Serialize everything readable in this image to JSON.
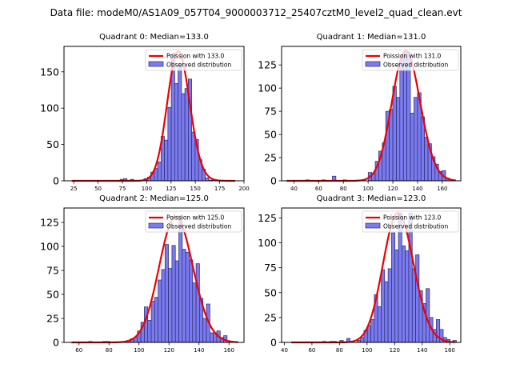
{
  "figure": {
    "suptitle": "Data file: modeM0/AS1A09_057T04_9000003712_25407cztM0_level2_quad_clean.evt",
    "colors": {
      "bar_fill": "#7b7bf0",
      "bar_edge": "#2b2b6b",
      "poisson_line": "#ee0000"
    }
  },
  "chart_data": [
    {
      "type": "bar",
      "title": "Quadrant 0: Median=133.0",
      "legend": {
        "entries": [
          "Poission with 133.0",
          "Observed distribution"
        ],
        "position": "top-right"
      },
      "xlim": [
        15,
        200
      ],
      "ylim": [
        0,
        185
      ],
      "xticks": [
        25,
        50,
        75,
        100,
        125,
        150,
        175,
        200
      ],
      "yticks": [
        0,
        50,
        100,
        150
      ],
      "poisson_mean": 133.0,
      "poisson_scale": 178,
      "bin_width": 3.5,
      "bins": [
        [
          74.5,
          2
        ],
        [
          78,
          3
        ],
        [
          85,
          2
        ],
        [
          99,
          3
        ],
        [
          102.5,
          5
        ],
        [
          106,
          12
        ],
        [
          109.5,
          17
        ],
        [
          113,
          26
        ],
        [
          116.5,
          61
        ],
        [
          120,
          56
        ],
        [
          123.5,
          101
        ],
        [
          127,
          175
        ],
        [
          130.5,
          134
        ],
        [
          134,
          162
        ],
        [
          137.5,
          120
        ],
        [
          141,
          127
        ],
        [
          144.5,
          140
        ],
        [
          148,
          67
        ],
        [
          151.5,
          57
        ],
        [
          155,
          29
        ],
        [
          158.5,
          16
        ],
        [
          162,
          4
        ],
        [
          165.5,
          1
        ],
        [
          169,
          1
        ]
      ],
      "bin_range": [
        23,
        191
      ]
    },
    {
      "type": "bar",
      "title": "Quadrant 1: Median=131.0",
      "legend": {
        "entries": [
          "Poission with 131.0",
          "Observed distribution"
        ],
        "position": "top-right"
      },
      "xlim": [
        30,
        175
      ],
      "ylim": [
        0,
        145
      ],
      "xticks": [
        40,
        60,
        80,
        100,
        120,
        140,
        160
      ],
      "yticks": [
        0,
        25,
        50,
        75,
        100,
        125
      ],
      "poisson_mean": 131.0,
      "poisson_scale": 140,
      "bin_width": 2.85,
      "bins": [
        [
          51,
          1
        ],
        [
          64,
          1
        ],
        [
          72.5,
          5
        ],
        [
          81,
          1
        ],
        [
          101.5,
          9
        ],
        [
          104.3,
          8
        ],
        [
          107.2,
          21
        ],
        [
          110,
          32
        ],
        [
          112.9,
          41
        ],
        [
          115.7,
          75
        ],
        [
          118.6,
          77
        ],
        [
          121.4,
          102
        ],
        [
          124.3,
          90
        ],
        [
          127.1,
          131
        ],
        [
          130,
          139
        ],
        [
          132.8,
          139
        ],
        [
          135.7,
          73
        ],
        [
          138.5,
          90
        ],
        [
          141.4,
          95
        ],
        [
          144.2,
          69
        ],
        [
          147.1,
          47
        ],
        [
          149.9,
          40
        ],
        [
          152.8,
          26
        ],
        [
          155.6,
          18
        ],
        [
          158.5,
          10
        ],
        [
          161.3,
          11
        ],
        [
          164.2,
          3
        ]
      ],
      "bin_range": [
        34,
        171
      ]
    },
    {
      "type": "bar",
      "title": "Quadrant 2: Median=125.0",
      "legend": {
        "entries": [
          "Poission with 125.0",
          "Observed distribution"
        ],
        "position": "top-right"
      },
      "xlim": [
        50,
        170
      ],
      "ylim": [
        0,
        140
      ],
      "xticks": [
        60,
        80,
        100,
        120,
        140,
        160
      ],
      "yticks": [
        0,
        25,
        50,
        75,
        100,
        125
      ],
      "poisson_mean": 125.0,
      "poisson_scale": 131,
      "bin_width": 2.3,
      "bins": [
        [
          67.5,
          1
        ],
        [
          77,
          1
        ],
        [
          79.3,
          1
        ],
        [
          93.2,
          2
        ],
        [
          95.5,
          4
        ],
        [
          97.8,
          5
        ],
        [
          100.1,
          12
        ],
        [
          102.4,
          21
        ],
        [
          104.7,
          37
        ],
        [
          107,
          23
        ],
        [
          109.3,
          43
        ],
        [
          111.6,
          47
        ],
        [
          113.9,
          65
        ],
        [
          116.2,
          76
        ],
        [
          118.5,
          102
        ],
        [
          120.8,
          77
        ],
        [
          123.1,
          101
        ],
        [
          125.4,
          85
        ],
        [
          127.7,
          132
        ],
        [
          130,
          97
        ],
        [
          132.3,
          94
        ],
        [
          134.6,
          86
        ],
        [
          136.9,
          62
        ],
        [
          139.2,
          82
        ],
        [
          141.5,
          46
        ],
        [
          143.8,
          25
        ],
        [
          146.1,
          40
        ],
        [
          148.4,
          10
        ],
        [
          150.7,
          10
        ],
        [
          153,
          12
        ],
        [
          155.3,
          5
        ],
        [
          157.6,
          7
        ]
      ],
      "bin_range": [
        55,
        166
      ]
    },
    {
      "type": "bar",
      "title": "Quadrant 3: Median=123.0",
      "legend": {
        "entries": [
          "Poission with 123.0",
          "Observed distribution"
        ],
        "position": "top-right"
      },
      "xlim": [
        38,
        168
      ],
      "ylim": [
        0,
        135
      ],
      "xticks": [
        40,
        60,
        80,
        100,
        120,
        140,
        160
      ],
      "yticks": [
        0,
        25,
        50,
        75,
        100,
        125
      ],
      "poisson_mean": 123.0,
      "poisson_scale": 130,
      "bin_width": 2.5,
      "bins": [
        [
          69,
          1
        ],
        [
          74,
          1
        ],
        [
          76.5,
          1
        ],
        [
          81.5,
          2
        ],
        [
          86.5,
          4
        ],
        [
          94,
          2
        ],
        [
          96.5,
          5
        ],
        [
          99,
          12
        ],
        [
          101.5,
          17
        ],
        [
          104,
          23
        ],
        [
          106.5,
          48
        ],
        [
          109,
          36
        ],
        [
          111.5,
          73
        ],
        [
          114,
          61
        ],
        [
          116.5,
          74
        ],
        [
          119,
          110
        ],
        [
          121.5,
          93
        ],
        [
          124,
          130
        ],
        [
          126.5,
          97
        ],
        [
          129,
          92
        ],
        [
          131.5,
          130
        ],
        [
          134,
          74
        ],
        [
          136.5,
          88
        ],
        [
          139,
          52
        ],
        [
          141.5,
          39
        ],
        [
          144,
          54
        ],
        [
          146.5,
          25
        ],
        [
          149,
          13
        ],
        [
          151.5,
          23
        ],
        [
          154,
          13
        ],
        [
          156.5,
          5
        ],
        [
          159,
          3
        ],
        [
          163.5,
          2
        ]
      ],
      "bin_range": [
        45,
        164
      ]
    }
  ]
}
